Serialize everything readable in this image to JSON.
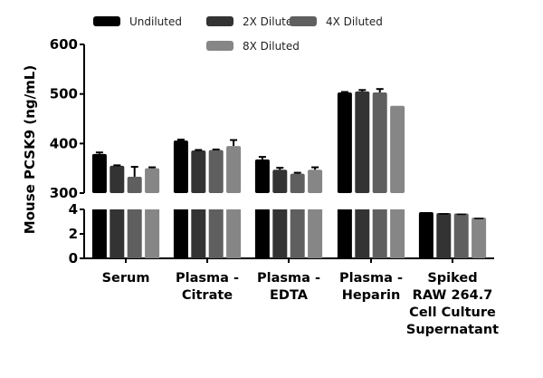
{
  "chart_data": {
    "type": "bar",
    "ylabel": "Mouse PCSK9 (ng/mL)",
    "xlabel": "",
    "y_axis_broken": true,
    "ylim_lower": [
      0,
      4
    ],
    "ylim_upper": [
      300,
      600
    ],
    "yticks_lower": [
      0,
      2,
      4
    ],
    "yticks_upper": [
      300,
      400,
      500,
      600
    ],
    "legend_position": "top",
    "categories": [
      [
        "Serum"
      ],
      [
        "Plasma -",
        "Citrate"
      ],
      [
        "Plasma -",
        "EDTA"
      ],
      [
        "Plasma -",
        "Heparin"
      ],
      [
        "Spiked",
        "RAW 264.7",
        "Cell Culture",
        "Supernatant"
      ]
    ],
    "series": [
      {
        "name": "Undiluted",
        "color": "#000000",
        "values": [
          379,
          406,
          368,
          503,
          3.78
        ],
        "errors": [
          3,
          2,
          5,
          1,
          0.02
        ]
      },
      {
        "name": "2X Diluted",
        "color": "#333333",
        "values": [
          355,
          386,
          347,
          505,
          3.7
        ],
        "errors": [
          1,
          1,
          4,
          3,
          0.02
        ]
      },
      {
        "name": "4X Diluted",
        "color": "#5f5f5f",
        "values": [
          333,
          387,
          339,
          503,
          3.67
        ],
        "errors": [
          20,
          1,
          2,
          7,
          0.02
        ]
      },
      {
        "name": "8X Diluted",
        "color": "#868686",
        "values": [
          350,
          395,
          347,
          476,
          3.33
        ],
        "errors": [
          2,
          12,
          5,
          0,
          0.02
        ]
      }
    ]
  }
}
